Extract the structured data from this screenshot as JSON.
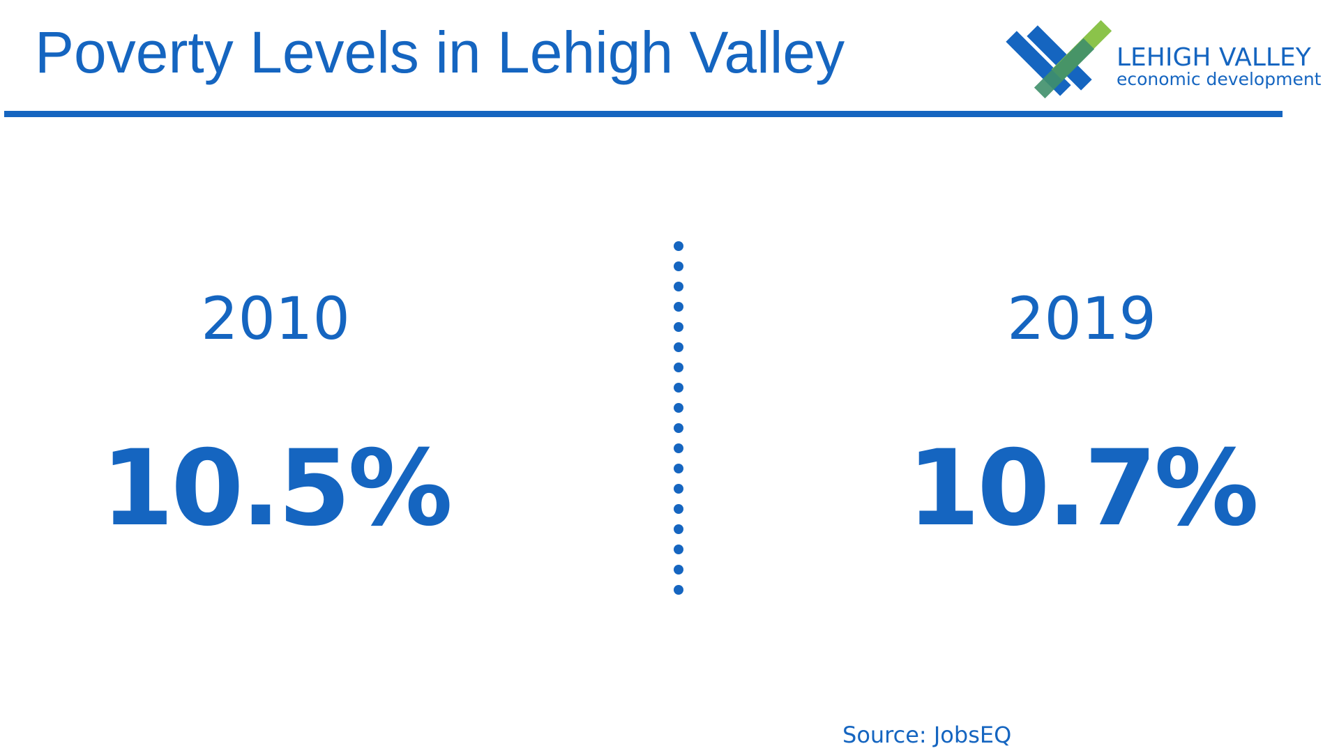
{
  "header": {
    "title": "Poverty Levels in Lehigh Valley"
  },
  "logo": {
    "name": "LEHIGH VALLEY",
    "tagline": "economic development"
  },
  "panels": [
    {
      "year": "2010",
      "value": "10.5%"
    },
    {
      "year": "2019",
      "value": "10.7%"
    }
  ],
  "source": "Source:  JobsEQ"
}
